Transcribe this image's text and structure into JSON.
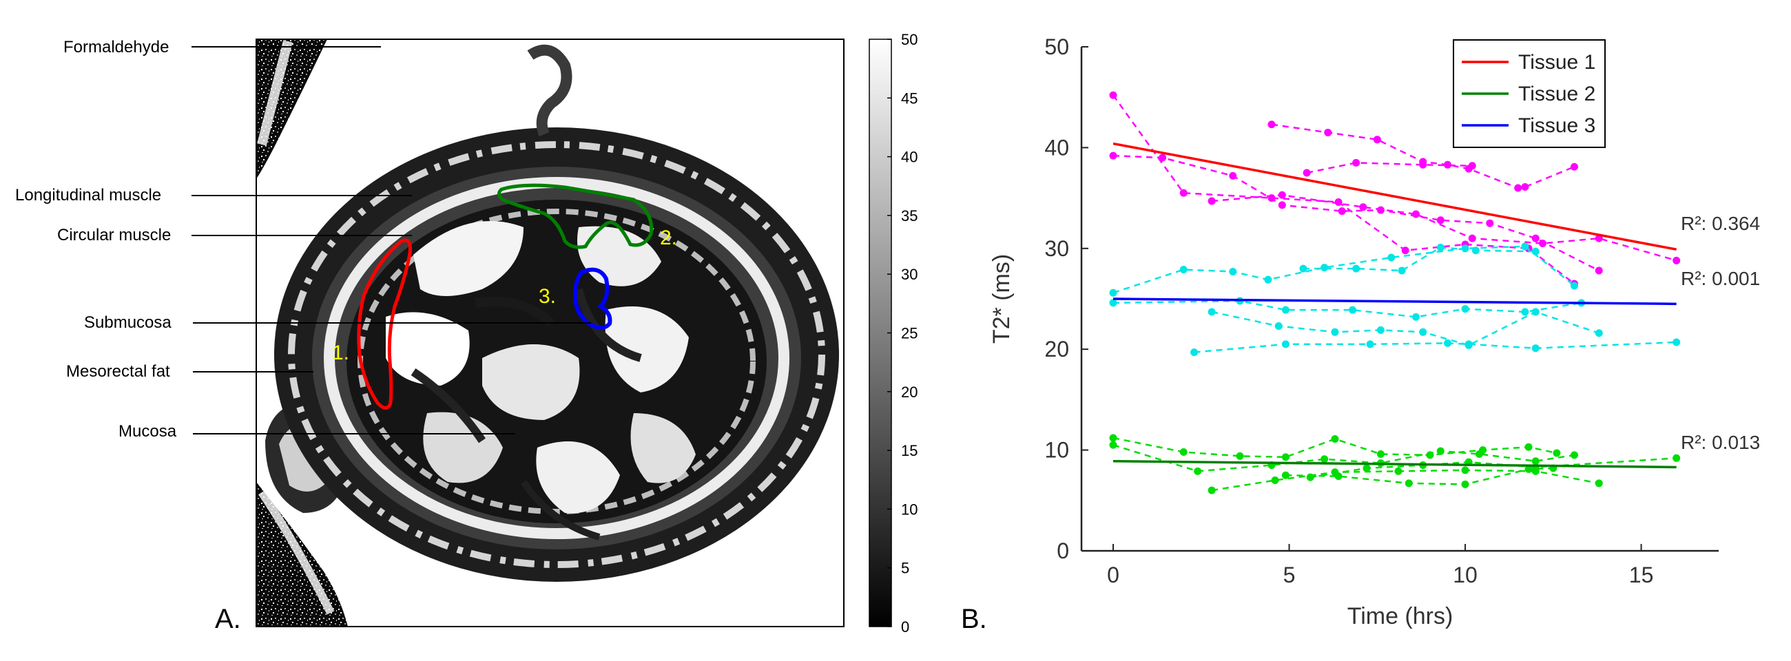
{
  "panel_a": {
    "label": "A.",
    "anatomy_labels": [
      "Formaldehyde",
      "Longitudinal muscle",
      "Circular muscle",
      "Submucosa",
      "Mesorectal fat",
      "Mucosa"
    ],
    "roi_labels": [
      "1.",
      "2.",
      "3."
    ],
    "roi_colors": [
      "#ff0000",
      "#008000",
      "#0000ff"
    ],
    "roi_label_color": "#ffff00",
    "colorbar": {
      "min": 0,
      "max": 50,
      "ticks": [
        "0",
        "5",
        "10",
        "15",
        "20",
        "25",
        "30",
        "35",
        "40",
        "45",
        "50"
      ]
    }
  },
  "panel_b": {
    "label": "B.",
    "r2_labels": [
      "R²: 0.364",
      "R²: 0.001",
      "R²: 0.013"
    ]
  },
  "chart_data": {
    "type": "line",
    "title": "",
    "xlabel": "Time (hrs)",
    "ylabel": "T2* (ms)",
    "xlim": [
      -0.9,
      17.2
    ],
    "ylim": [
      0,
      50
    ],
    "xticks": [
      0,
      5,
      10,
      15
    ],
    "yticks": [
      0,
      10,
      20,
      30,
      40,
      50
    ],
    "grid": false,
    "legend_position": "top-right",
    "legend": [
      {
        "name": "Tissue 1",
        "color": "#ff0000"
      },
      {
        "name": "Tissue 2",
        "color": "#008000"
      },
      {
        "name": "Tissue 3",
        "color": "#0000ff"
      }
    ],
    "fit_lines": [
      {
        "name": "Tissue 1",
        "color": "#ff0000",
        "x": [
          0,
          16
        ],
        "y": [
          40.4,
          29.9
        ],
        "r2": 0.364
      },
      {
        "name": "Tissue 3",
        "color": "#0000ff",
        "x": [
          0,
          16
        ],
        "y": [
          25.0,
          24.5
        ],
        "r2": 0.001
      },
      {
        "name": "Tissue 2",
        "color": "#008000",
        "x": [
          0,
          16
        ],
        "y": [
          8.9,
          8.3
        ],
        "r2": 0.013
      }
    ],
    "series": [
      {
        "name": "Tissue 1 sample a",
        "group": "Tissue 1",
        "color": "#ff00ff",
        "x": [
          0,
          2.0,
          4.5,
          6.4,
          8.3,
          10.0,
          11.8,
          13.1
        ],
        "y": [
          45.2,
          35.5,
          35.0,
          34.6,
          29.8,
          30.4,
          30.0,
          26.5
        ]
      },
      {
        "name": "Tissue 1 sample b",
        "group": "Tissue 1",
        "color": "#ff00ff",
        "x": [
          0,
          1.4,
          3.4,
          4.8,
          6.5,
          7.6,
          9.3,
          10.7,
          12.0,
          13.8
        ],
        "y": [
          39.2,
          39.0,
          37.2,
          34.3,
          33.7,
          33.8,
          32.8,
          32.5,
          31.0,
          27.8
        ]
      },
      {
        "name": "Tissue 1 sample c",
        "group": "Tissue 1",
        "color": "#ff00ff",
        "x": [
          4.5,
          6.1,
          7.5,
          8.8,
          9.5,
          10.1,
          11.5,
          11.7,
          13.1
        ],
        "y": [
          42.3,
          41.5,
          40.8,
          38.6,
          38.3,
          37.9,
          36.0,
          36.1,
          38.1
        ]
      },
      {
        "name": "Tissue 1 sample d",
        "group": "Tissue 1",
        "color": "#ff00ff",
        "x": [
          2.8,
          4.8,
          7.1,
          8.6,
          10.2,
          12.2,
          13.8,
          16.0
        ],
        "y": [
          34.7,
          35.3,
          34.1,
          33.4,
          31.0,
          30.5,
          31.0,
          28.8
        ]
      },
      {
        "name": "Tissue 1 sample e",
        "group": "Tissue 1",
        "color": "#ff00ff",
        "x": [
          5.5,
          6.9,
          8.8,
          10.2
        ],
        "y": [
          37.5,
          38.5,
          38.3,
          38.2
        ]
      },
      {
        "name": "Tissue 3 sample a",
        "group": "Tissue 3",
        "color": "#00e5e5",
        "x": [
          0,
          2.0,
          3.4,
          4.4,
          6.0,
          7.9,
          10.0,
          11.7,
          13.1
        ],
        "y": [
          25.6,
          27.9,
          27.7,
          26.9,
          28.1,
          29.1,
          30.0,
          30.2,
          26.3
        ]
      },
      {
        "name": "Tissue 3 sample b",
        "group": "Tissue 3",
        "color": "#00e5e5",
        "x": [
          0,
          3.6,
          4.9,
          6.8,
          8.6,
          10.0,
          11.7,
          13.3
        ],
        "y": [
          24.6,
          24.8,
          23.9,
          23.9,
          23.2,
          24.0,
          23.7,
          24.6
        ]
      },
      {
        "name": "Tissue 3 sample c",
        "group": "Tissue 3",
        "color": "#00e5e5",
        "x": [
          5.4,
          6.9,
          8.2,
          9.3,
          10.3,
          12.0
        ],
        "y": [
          28.0,
          28.0,
          27.8,
          30.1,
          29.8,
          29.7
        ]
      },
      {
        "name": "Tissue 3 sample d",
        "group": "Tissue 3",
        "color": "#00e5e5",
        "x": [
          2.8,
          4.7,
          6.3,
          7.6,
          8.8,
          10.1,
          12.0,
          13.8
        ],
        "y": [
          23.7,
          22.3,
          21.7,
          21.9,
          21.7,
          20.4,
          23.7,
          21.6
        ]
      },
      {
        "name": "Tissue 3 sample e",
        "group": "Tissue 3",
        "color": "#00e5e5",
        "x": [
          2.3,
          4.9,
          7.3,
          9.5,
          10.1,
          12.0,
          16.0
        ],
        "y": [
          19.7,
          20.5,
          20.5,
          20.6,
          20.5,
          20.1,
          20.7
        ]
      },
      {
        "name": "Tissue 2 sample a",
        "group": "Tissue 2",
        "color": "#00dd00",
        "x": [
          0,
          2.0,
          3.6,
          4.9,
          6.3,
          7.6,
          9.0,
          10.5,
          11.8,
          12.6
        ],
        "y": [
          11.2,
          9.8,
          9.4,
          9.3,
          11.1,
          9.6,
          9.5,
          10.0,
          10.3,
          9.7
        ]
      },
      {
        "name": "Tissue 2 sample b",
        "group": "Tissue 2",
        "color": "#00dd00",
        "x": [
          0,
          2.4,
          4.5,
          6.0,
          7.6,
          9.3,
          10.4,
          12.0,
          13.1
        ],
        "y": [
          10.5,
          7.9,
          8.5,
          9.1,
          8.7,
          9.9,
          9.6,
          8.9,
          9.5
        ]
      },
      {
        "name": "Tissue 2 sample c",
        "group": "Tissue 2",
        "color": "#00dd00",
        "x": [
          2.8,
          4.6,
          6.3,
          8.1,
          10.0,
          12.0,
          13.8
        ],
        "y": [
          6.0,
          7.0,
          7.8,
          7.9,
          8.0,
          7.9,
          6.7
        ]
      },
      {
        "name": "Tissue 2 sample d",
        "group": "Tissue 2",
        "color": "#00dd00",
        "x": [
          4.9,
          6.4,
          8.4,
          10.0,
          11.8,
          12.5
        ],
        "y": [
          7.5,
          7.4,
          6.7,
          6.6,
          8.1,
          8.2
        ]
      },
      {
        "name": "Tissue 2 sample e",
        "group": "Tissue 2",
        "color": "#00dd00",
        "x": [
          5.6,
          7.2,
          8.8,
          10.1,
          12.0,
          16.0
        ],
        "y": [
          7.3,
          8.2,
          8.5,
          8.8,
          8.3,
          9.2
        ]
      }
    ]
  }
}
